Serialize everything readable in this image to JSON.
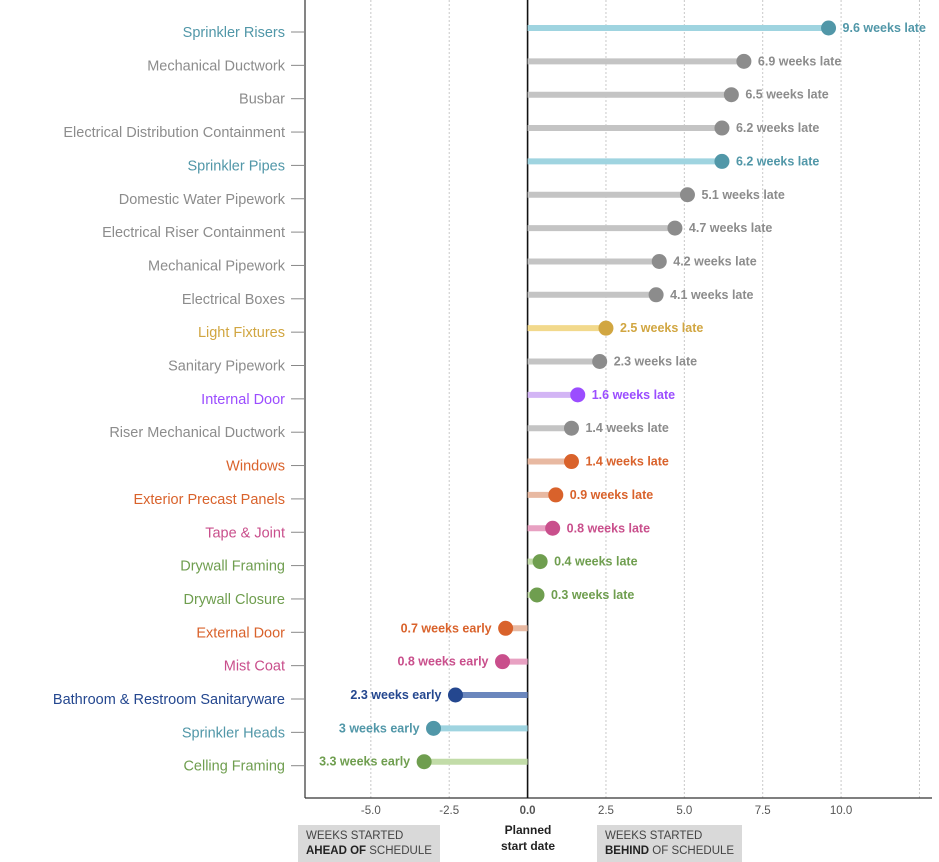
{
  "chart_data": {
    "type": "lollipop",
    "title": "",
    "xlabel": "",
    "ylabel": "",
    "xlim": [
      -7.1,
      12.9
    ],
    "x_ticks": [
      {
        "value": -5.0,
        "label": "-5.0"
      },
      {
        "value": -2.5,
        "label": "-2.5"
      },
      {
        "value": 0.0,
        "label": "0.0",
        "bold": true
      },
      {
        "value": 2.5,
        "label": "2.5"
      },
      {
        "value": 5.0,
        "label": "5.0"
      },
      {
        "value": 7.5,
        "label": "7.5"
      },
      {
        "value": 10.0,
        "label": "10.0"
      }
    ],
    "gridlines": [
      -5.0,
      -2.5,
      2.5,
      5.0,
      7.5,
      10.0,
      12.5
    ],
    "grid": true,
    "categories": [
      {
        "name": "Sprinkler Risers",
        "value": 9.6,
        "label": "9.6 weeks late",
        "color": "#5197a8",
        "stem": "#9fd4e0"
      },
      {
        "name": "Mechanical Ductwork",
        "value": 6.9,
        "label": "6.9 weeks late",
        "color": "#8c8c8c",
        "stem": "#c4c4c4"
      },
      {
        "name": "Busbar",
        "value": 6.5,
        "label": "6.5 weeks late",
        "color": "#8c8c8c",
        "stem": "#c4c4c4"
      },
      {
        "name": "Electrical Distribution Containment",
        "value": 6.2,
        "label": "6.2 weeks late",
        "color": "#8c8c8c",
        "stem": "#c4c4c4"
      },
      {
        "name": "Sprinkler Pipes",
        "value": 6.2,
        "label": "6.2 weeks late",
        "color": "#5197a8",
        "stem": "#9fd4e0"
      },
      {
        "name": "Domestic Water Pipework",
        "value": 5.1,
        "label": "5.1 weeks late",
        "color": "#8c8c8c",
        "stem": "#c4c4c4"
      },
      {
        "name": "Electrical Riser Containment",
        "value": 4.7,
        "label": "4.7 weeks late",
        "color": "#8c8c8c",
        "stem": "#c4c4c4"
      },
      {
        "name": "Mechanical Pipework",
        "value": 4.2,
        "label": "4.2 weeks late",
        "color": "#8c8c8c",
        "stem": "#c4c4c4"
      },
      {
        "name": "Electrical Boxes",
        "value": 4.1,
        "label": "4.1 weeks late",
        "color": "#8c8c8c",
        "stem": "#c4c4c4"
      },
      {
        "name": "Light Fixtures",
        "value": 2.5,
        "label": "2.5 weeks late",
        "color": "#d1a641",
        "stem": "#f2d98c"
      },
      {
        "name": "Sanitary Pipework",
        "value": 2.3,
        "label": "2.3 weeks late",
        "color": "#8c8c8c",
        "stem": "#c4c4c4"
      },
      {
        "name": "Internal Door",
        "value": 1.6,
        "label": "1.6 weeks late",
        "color": "#9b4dff",
        "stem": "#d3b5f5"
      },
      {
        "name": "Riser Mechanical Ductwork",
        "value": 1.4,
        "label": "1.4 weeks late",
        "color": "#8c8c8c",
        "stem": "#c4c4c4"
      },
      {
        "name": "Windows",
        "value": 1.4,
        "label": "1.4 weeks late",
        "color": "#d9622b",
        "stem": "#e8b9a2"
      },
      {
        "name": "Exterior Precast Panels",
        "value": 0.9,
        "label": "0.9 weeks late",
        "color": "#d9622b",
        "stem": "#e8b9a2"
      },
      {
        "name": "Tape & Joint",
        "value": 0.8,
        "label": "0.8 weeks late",
        "color": "#c94f8c",
        "stem": "#e8a1c2"
      },
      {
        "name": "Drywall Framing",
        "value": 0.4,
        "label": "0.4 weeks late",
        "color": "#6f9e4f",
        "stem": "#c2dca8"
      },
      {
        "name": "Drywall Closure",
        "value": 0.3,
        "label": "0.3 weeks late",
        "color": "#6f9e4f",
        "stem": "#c2dca8"
      },
      {
        "name": "External Door",
        "value": -0.7,
        "label": "0.7 weeks early",
        "color": "#d9622b",
        "stem": "#e8b9a2"
      },
      {
        "name": "Mist Coat",
        "value": -0.8,
        "label": "0.8 weeks early",
        "color": "#c94f8c",
        "stem": "#e8a1c2"
      },
      {
        "name": "Bathroom & Restroom Sanitaryware",
        "value": -2.3,
        "label": "2.3 weeks early",
        "color": "#24478f",
        "stem": "#6b87bd"
      },
      {
        "name": "Sprinkler Heads",
        "value": -3.0,
        "label": "3 weeks early",
        "color": "#5197a8",
        "stem": "#9fd4e0"
      },
      {
        "name": "Celling Framing",
        "value": -3.3,
        "label": "3.3 weeks early",
        "color": "#6f9e4f",
        "stem": "#c2dca8"
      }
    ]
  },
  "annotations": {
    "ahead_line1": "WEEKS STARTED",
    "ahead_bold": "AHEAD OF",
    "ahead_rest": " SCHEDULE",
    "center_line1": "Planned",
    "center_line2": "start date",
    "behind_line1": "WEEKS STARTED",
    "behind_bold": "BEHIND",
    "behind_rest": " OF SCHEDULE"
  }
}
